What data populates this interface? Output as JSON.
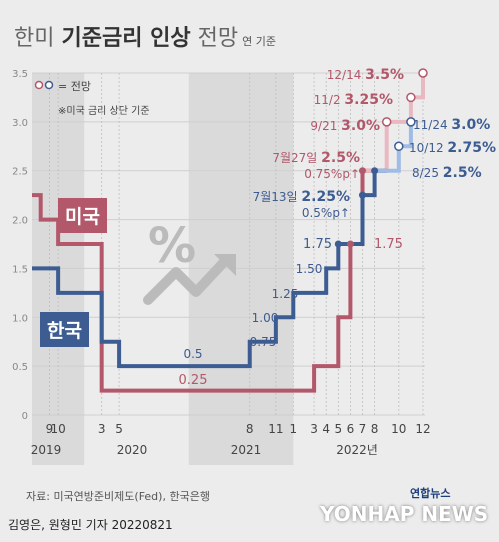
{
  "title": {
    "main": "한미 ",
    "bold": "기준금리 인상",
    "rest": " 전망",
    "sub": "연 기준"
  },
  "legend": {
    "marker_label": "= 전망",
    "note": "※미국 금리 상단 기준"
  },
  "source": "자료: 미국연방준비제도(Fed), 한국은행",
  "credit": "김영은, 원형민 기자 20220821",
  "logo": {
    "line1": "연합뉴스",
    "line2": "YONHAP NEWS"
  },
  "tags": {
    "us": "미국",
    "kr": "한국"
  },
  "colors": {
    "us": "#b2586a",
    "us_light": "#e9b8c0",
    "kr": "#3d5c92",
    "kr_light": "#9fbbe6",
    "grid": "#cfcfcf"
  },
  "chart_data": {
    "type": "line",
    "step": true,
    "ylim": [
      0,
      3.5
    ],
    "yticks": [
      "0",
      "0.5",
      "1.0",
      "1.5",
      "2.0",
      "2.5",
      "3.0",
      "3.5"
    ],
    "x_axis": {
      "month_ticks": [
        "9",
        "10",
        "3",
        "5",
        "8",
        "11",
        "1",
        "3",
        "4",
        "5",
        "6",
        "7",
        "8",
        "10",
        "12"
      ],
      "years": [
        "2019",
        "2020",
        "2021",
        "2022년"
      ]
    },
    "series": [
      {
        "name": "미국",
        "points": [
          [
            "2019-07",
            2.25
          ],
          [
            "2019-08",
            2.0
          ],
          [
            "2019-09",
            2.0
          ],
          [
            "2019-10",
            1.75
          ],
          [
            "2020-03",
            0.25
          ],
          [
            "2022-03",
            0.5
          ],
          [
            "2022-05",
            1.0
          ],
          [
            "2022-06",
            1.75
          ],
          [
            "2022-07",
            2.5
          ]
        ],
        "forecast": [
          [
            "2022-09",
            3.0
          ],
          [
            "2022-11",
            3.25
          ],
          [
            "2022-12",
            3.5
          ]
        ]
      },
      {
        "name": "한국",
        "points": [
          [
            "2019-07",
            1.5
          ],
          [
            "2019-10",
            1.25
          ],
          [
            "2020-03",
            0.75
          ],
          [
            "2020-05",
            0.5
          ],
          [
            "2021-08",
            0.75
          ],
          [
            "2021-11",
            1.0
          ],
          [
            "2022-01",
            1.25
          ],
          [
            "2022-04",
            1.5
          ],
          [
            "2022-05",
            1.75
          ],
          [
            "2022-07",
            2.25
          ],
          [
            "2022-08",
            2.5
          ]
        ],
        "forecast": [
          [
            "2022-10",
            2.75
          ],
          [
            "2022-11",
            3.0
          ]
        ]
      }
    ],
    "annotations": {
      "us": [
        {
          "text": "0.25"
        },
        {
          "text": "1.75"
        },
        {
          "text": "7월27일 ",
          "bold": "2.5%",
          "sub": "0.75%p↑"
        },
        {
          "text": "9/21 ",
          "bold": "3.0%"
        },
        {
          "text": "11/2 ",
          "bold": "3.25%"
        },
        {
          "text": "12/14 ",
          "bold": "3.5%"
        }
      ],
      "kr": [
        {
          "text": "0.5"
        },
        {
          "text": "0.75"
        },
        {
          "text": "1.00"
        },
        {
          "text": "1.25"
        },
        {
          "text": "1.50"
        },
        {
          "text": "1.75"
        },
        {
          "text": "7월13일 ",
          "bold": "2.25%",
          "sub": "0.5%p↑"
        },
        {
          "text": "8/25 ",
          "bold": "2.5%"
        },
        {
          "text": "10/12 ",
          "bold": "2.75%"
        },
        {
          "text": "11/24 ",
          "bold": "3.0%"
        }
      ]
    }
  }
}
